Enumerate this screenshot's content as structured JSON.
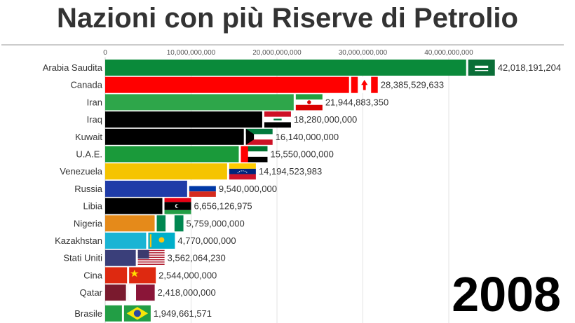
{
  "title": "Nazioni con più Riserve di Petrolio",
  "year": "2008",
  "chart_data": {
    "type": "bar",
    "orientation": "horizontal",
    "title": "Nazioni con più Riserve di Petrolio",
    "xlim": [
      0,
      46000000000
    ],
    "x_ticks": [
      0,
      10000000000,
      20000000000,
      30000000000,
      40000000000
    ],
    "x_tick_labels": [
      "0",
      "10,000,000,000",
      "20,000,000,000",
      "30,000,000,000",
      "40,000,000,000"
    ],
    "grid": true,
    "categories": [
      "Arabia Saudita",
      "Canada",
      "Iran",
      "Iraq",
      "Kuwait",
      "U.A.E.",
      "Venezuela",
      "Russia",
      "Libia",
      "Nigeria",
      "Kazakhstan",
      "Stati Uniti",
      "Cina",
      "Qatar",
      "Brasile"
    ],
    "values": [
      42018191204,
      28385529633,
      21944883350,
      18280000000,
      16140000000,
      15550000000,
      14194523983,
      9540000000,
      6656126975,
      5759000000,
      4770000000,
      3562064230,
      2544000000,
      2418000000,
      1949661571
    ],
    "value_labels": [
      "42,018,191,204",
      "28,385,529,633",
      "21,944,883,350",
      "18,280,000,000",
      "16,140,000,000",
      "15,550,000,000",
      "14,194,523,983",
      "9,540,000,000",
      "6,656,126,975",
      "5,759,000,000",
      "4,770,000,000",
      "3,562,064,230",
      "2,544,000,000",
      "2,418,000,000",
      "1,949,661,571"
    ],
    "colors": [
      "#0a8a3a",
      "#ff0000",
      "#2ea64a",
      "#000000",
      "#000000",
      "#1a9a3a",
      "#f5c400",
      "#1f3ca8",
      "#000000",
      "#e58a1a",
      "#1ab4d4",
      "#3a3f7a",
      "#de2910",
      "#7a1a2e",
      "#229e45"
    ],
    "flags": [
      "saudi-arabia",
      "canada",
      "iran",
      "iraq",
      "kuwait",
      "uae",
      "venezuela",
      "russia",
      "libya",
      "nigeria",
      "kazakhstan",
      "usa",
      "china",
      "qatar",
      "brazil"
    ]
  }
}
